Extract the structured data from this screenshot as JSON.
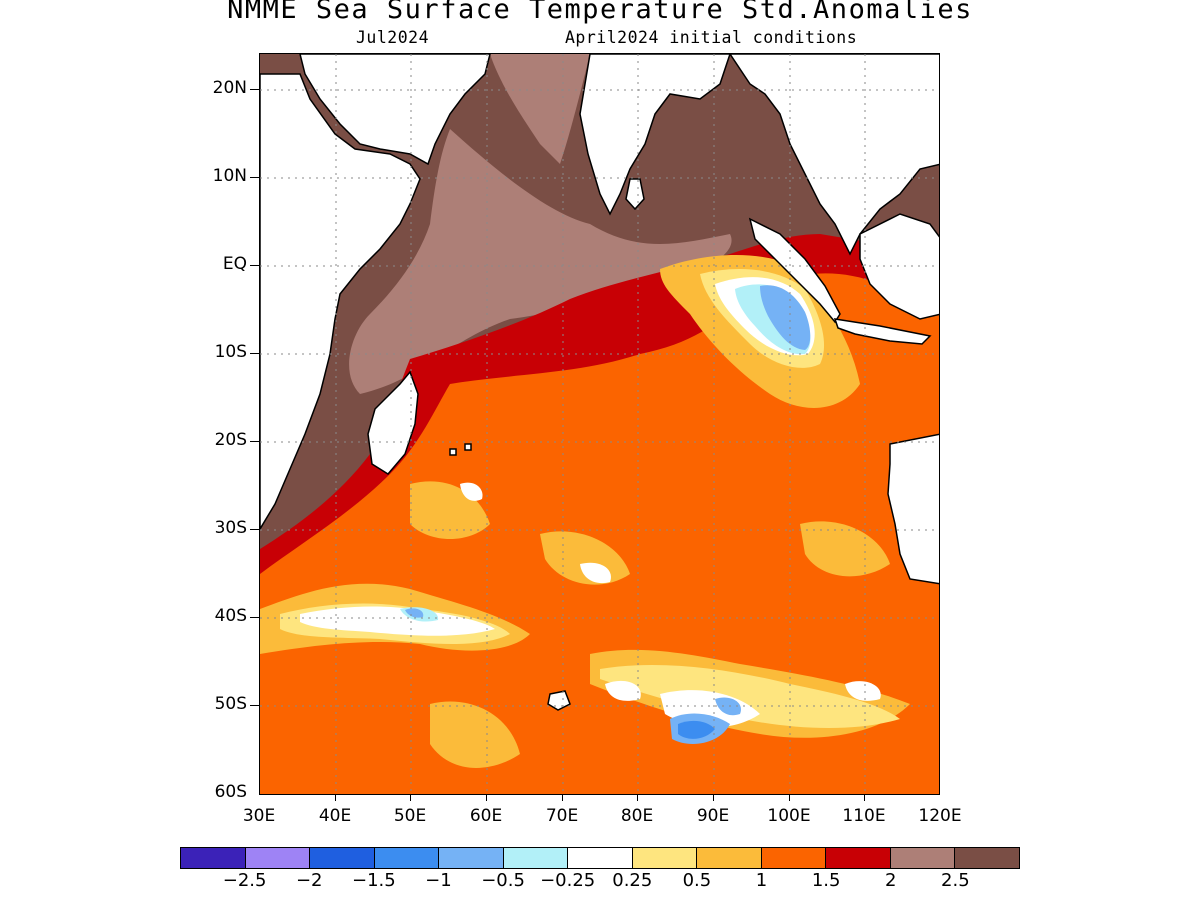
{
  "title": "NMME Sea Surface Temperature Std.Anomalies",
  "subtitle_left": "Jul2024",
  "subtitle_right": "April2024 initial conditions",
  "map": {
    "region": "Indian Ocean",
    "lon_range": [
      30,
      120
    ],
    "lat_range": [
      -60,
      24
    ],
    "lat_ticks": [
      "20N",
      "10N",
      "EQ",
      "10S",
      "20S",
      "30S",
      "40S",
      "50S",
      "60S"
    ],
    "lon_ticks": [
      "30E",
      "40E",
      "50E",
      "60E",
      "70E",
      "80E",
      "90E",
      "100E",
      "110E",
      "120E"
    ],
    "grid": "dotted"
  },
  "colorbar": {
    "colors": [
      "#3b22b8",
      "#9e83f5",
      "#1f5fe0",
      "#3c8df0",
      "#75b2f5",
      "#b2f0f8",
      "#ffffff",
      "#fee57f",
      "#fbbb3a",
      "#fb6400",
      "#c80005",
      "#ad7f77",
      "#7a4e45"
    ],
    "labels": [
      "-2.5",
      "-2",
      "-1.5",
      "-1",
      "-0.5",
      "-0.25",
      "0.25",
      "0.5",
      "1",
      "1.5",
      "2",
      "2.5"
    ]
  }
}
